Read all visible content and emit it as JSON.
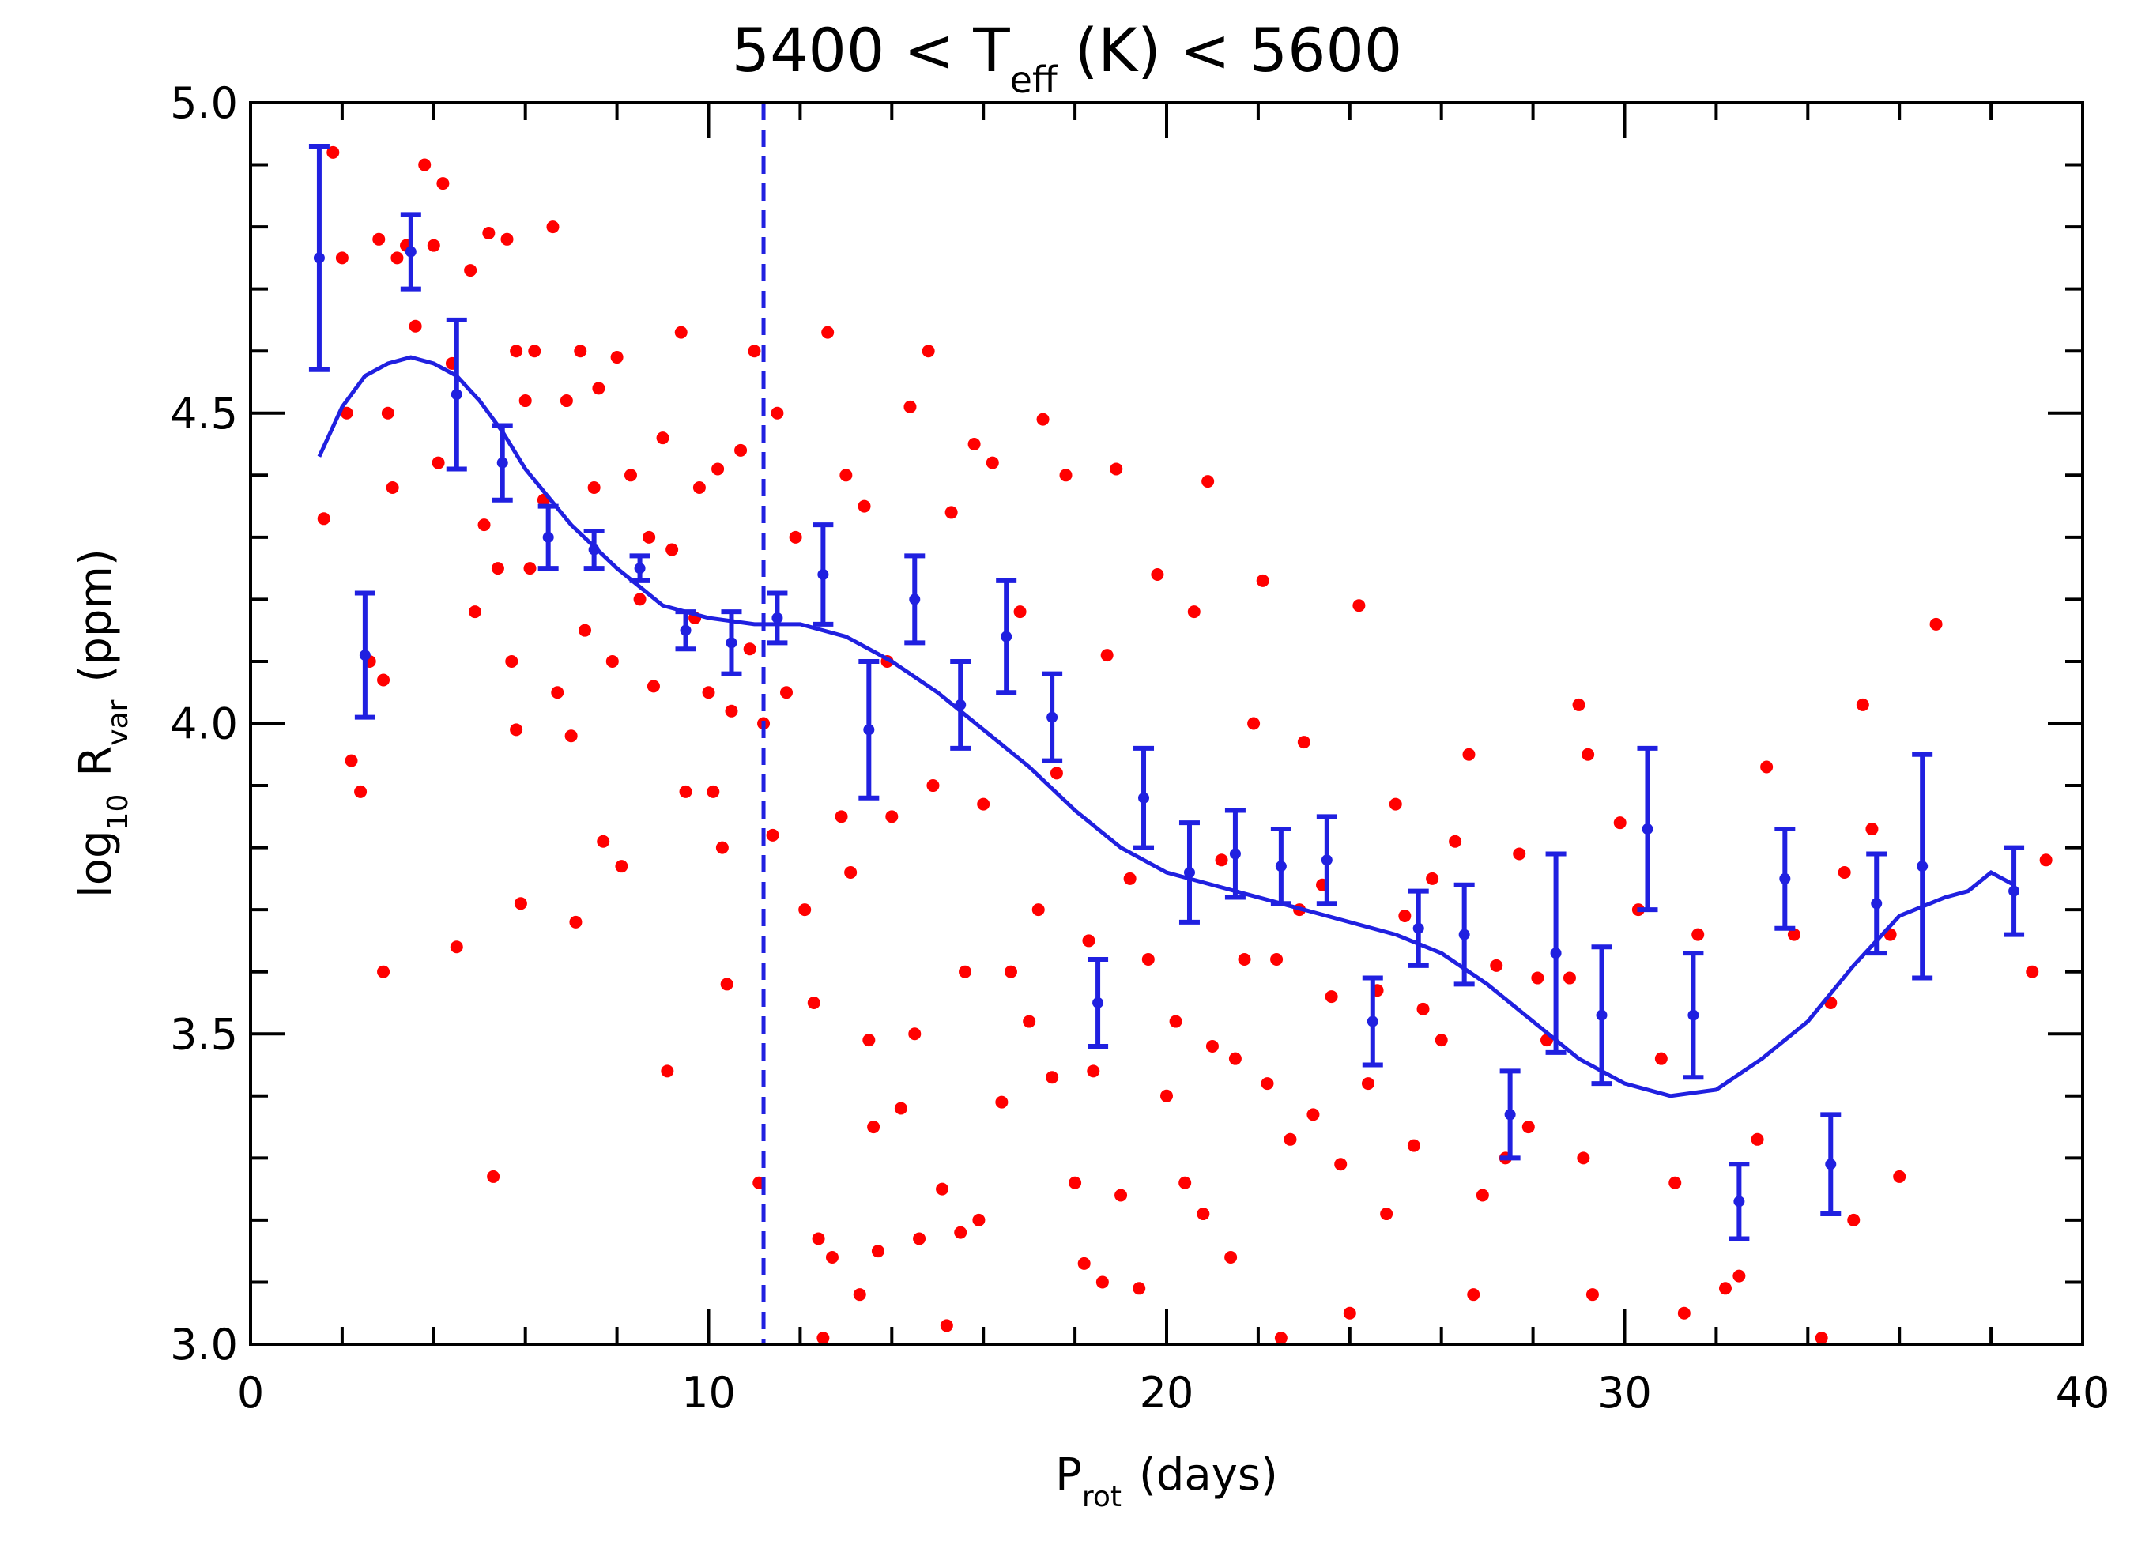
{
  "chart_data": {
    "type": "scatter",
    "title": "5400 < T",
    "title_sub": "eff",
    "title_tail": "(K) < 5600",
    "xlabel": "P",
    "xlabel_sub": "rot",
    "xlabel_tail": "(days)",
    "ylabel": "log",
    "ylabel_sub": "10",
    "ylabel_mid": "R",
    "ylabel_sub2": "var",
    "ylabel_tail": "(ppm)",
    "xlim": [
      0,
      40
    ],
    "xticks": [
      0,
      10,
      20,
      30,
      40
    ],
    "xminorticks": [
      2,
      4,
      6,
      8,
      12,
      14,
      16,
      18,
      22,
      24,
      26,
      28,
      32,
      34,
      36,
      38
    ],
    "ylim": [
      3,
      5
    ],
    "yticks": [
      {
        "value": 3,
        "label": "3.0"
      },
      3.5,
      {
        "value": 4,
        "label": "4.0"
      },
      4.5,
      {
        "value": 5,
        "label": "5.0"
      }
    ],
    "yminorticks": [
      3.1,
      3.2,
      3.3,
      3.4,
      3.6,
      3.7,
      3.8,
      3.9,
      4.1,
      4.2,
      4.3,
      4.4,
      4.6,
      4.7,
      4.8,
      4.9
    ],
    "points": {
      "color": "#ff0000",
      "x": [
        1.6,
        1.8,
        2.0,
        2.1,
        2.2,
        2.4,
        2.6,
        2.8,
        2.9,
        2.9,
        3.0,
        3.1,
        3.2,
        3.4,
        3.6,
        3.8,
        4.0,
        4.1,
        4.2,
        4.4,
        4.5,
        4.8,
        4.9,
        5.1,
        5.2,
        5.3,
        5.4,
        5.6,
        5.7,
        5.8,
        5.8,
        5.9,
        6.0,
        6.1,
        6.2,
        6.4,
        6.6,
        6.7,
        6.9,
        7.0,
        7.1,
        7.2,
        7.3,
        7.5,
        7.6,
        7.7,
        7.9,
        8.0,
        8.1,
        8.3,
        8.5,
        8.7,
        8.8,
        9.0,
        9.1,
        9.2,
        9.4,
        9.5,
        9.7,
        9.8,
        10.0,
        10.1,
        10.2,
        10.3,
        10.4,
        10.5,
        10.7,
        10.9,
        11.0,
        11.1,
        11.2,
        11.4,
        11.5,
        11.7,
        11.9,
        12.1,
        12.3,
        12.4,
        12.5,
        12.6,
        12.7,
        12.9,
        13.0,
        13.1,
        13.3,
        13.4,
        13.5,
        13.6,
        13.7,
        13.9,
        14.0,
        14.2,
        14.4,
        14.5,
        14.6,
        14.8,
        14.9,
        15.1,
        15.2,
        15.3,
        15.5,
        15.6,
        15.8,
        15.9,
        16.0,
        16.2,
        16.4,
        16.6,
        16.8,
        17.0,
        17.2,
        17.3,
        17.5,
        17.6,
        17.8,
        18.0,
        18.2,
        18.3,
        18.4,
        18.6,
        18.7,
        18.9,
        19.0,
        19.2,
        19.4,
        19.6,
        19.8,
        20.0,
        20.2,
        20.4,
        20.6,
        20.8,
        20.9,
        21.0,
        21.2,
        21.4,
        21.5,
        21.7,
        21.9,
        22.1,
        22.2,
        22.4,
        22.5,
        22.7,
        22.9,
        23.0,
        23.2,
        23.4,
        23.6,
        23.8,
        24.0,
        24.2,
        24.4,
        24.6,
        24.8,
        25.0,
        25.2,
        25.4,
        25.6,
        25.8,
        26.0,
        26.3,
        26.6,
        26.7,
        26.9,
        27.2,
        27.4,
        27.7,
        27.9,
        28.1,
        28.3,
        28.8,
        29.0,
        29.1,
        29.2,
        29.3,
        29.9,
        30.3,
        30.8,
        31.1,
        31.3,
        31.6,
        32.2,
        32.5,
        32.9,
        33.1,
        33.7,
        34.3,
        34.5,
        34.8,
        35.0,
        35.2,
        35.4,
        35.8,
        36.0,
        36.8,
        38.9,
        39.2
      ],
      "values": [
        4.33,
        4.92,
        4.75,
        4.5,
        3.94,
        3.89,
        4.1,
        4.78,
        3.6,
        4.07,
        4.5,
        4.38,
        4.75,
        4.77,
        4.64,
        4.9,
        4.77,
        4.42,
        4.87,
        4.58,
        3.64,
        4.73,
        4.18,
        4.32,
        4.79,
        3.27,
        4.25,
        4.78,
        4.1,
        4.6,
        3.99,
        3.71,
        4.52,
        4.25,
        4.6,
        4.36,
        4.8,
        4.05,
        4.52,
        3.98,
        3.68,
        4.6,
        4.15,
        4.38,
        4.54,
        3.81,
        4.1,
        4.59,
        3.77,
        4.4,
        4.2,
        4.3,
        4.06,
        4.46,
        3.44,
        4.28,
        4.63,
        3.89,
        4.17,
        4.38,
        4.05,
        3.89,
        4.41,
        3.8,
        3.58,
        4.02,
        4.44,
        4.12,
        4.6,
        3.26,
        4.0,
        3.82,
        4.5,
        4.05,
        4.3,
        3.7,
        3.55,
        3.17,
        3.01,
        4.63,
        3.14,
        3.85,
        4.4,
        3.76,
        3.08,
        4.35,
        3.49,
        3.35,
        3.15,
        4.1,
        3.85,
        3.38,
        4.51,
        3.5,
        3.17,
        4.6,
        3.9,
        3.25,
        3.03,
        4.34,
        3.18,
        3.6,
        4.45,
        3.2,
        3.87,
        4.42,
        3.39,
        3.6,
        4.18,
        3.52,
        3.7,
        4.49,
        3.43,
        3.92,
        4.4,
        3.26,
        3.13,
        3.65,
        3.44,
        3.1,
        4.11,
        4.41,
        3.24,
        3.75,
        3.09,
        3.62,
        4.24,
        3.4,
        3.52,
        3.26,
        4.18,
        3.21,
        4.39,
        3.48,
        3.78,
        3.14,
        3.46,
        3.62,
        4.0,
        4.23,
        3.42,
        3.62,
        3.01,
        3.33,
        3.7,
        3.97,
        3.37,
        3.74,
        3.56,
        3.29,
        3.05,
        4.19,
        3.42,
        3.57,
        3.21,
        3.87,
        3.69,
        3.32,
        3.54,
        3.75,
        3.49,
        3.81,
        3.95,
        3.08,
        3.24,
        3.61,
        3.3,
        3.79,
        3.35,
        3.59,
        3.49,
        3.59,
        4.03,
        3.3,
        3.95,
        3.08,
        3.84,
        3.7,
        3.46,
        3.26,
        3.05,
        3.66,
        3.09,
        3.11,
        3.33,
        3.93,
        3.66,
        3.01,
        3.55,
        3.76,
        3.2,
        4.03,
        3.83,
        3.66,
        3.27,
        4.16,
        3.6,
        3.78
      ]
    },
    "means": {
      "color": "#2020e0",
      "x": [
        1.5,
        2.5,
        3.5,
        4.5,
        5.5,
        6.5,
        7.5,
        8.5,
        9.5,
        10.5,
        11.5,
        12.5,
        13.5,
        14.5,
        15.5,
        16.5,
        17.5,
        18.5,
        19.5,
        20.5,
        21.5,
        22.5,
        23.5,
        24.5,
        25.5,
        26.5,
        27.5,
        28.5,
        29.5,
        30.5,
        31.5,
        32.5,
        33.5,
        34.5,
        35.5,
        36.5,
        38.5
      ],
      "values": [
        4.75,
        4.11,
        4.76,
        4.53,
        4.42,
        4.3,
        4.28,
        4.25,
        4.15,
        4.13,
        4.17,
        4.24,
        3.99,
        4.2,
        4.03,
        4.14,
        4.01,
        3.55,
        3.88,
        3.76,
        3.79,
        3.77,
        3.78,
        3.52,
        3.67,
        3.66,
        3.37,
        3.63,
        3.53,
        3.83,
        3.53,
        3.23,
        3.75,
        3.29,
        3.71,
        3.77,
        3.73
      ],
      "errors": [
        0.18,
        0.1,
        0.06,
        0.12,
        0.06,
        0.05,
        0.03,
        0.02,
        0.03,
        0.05,
        0.04,
        0.08,
        0.11,
        0.07,
        0.07,
        0.09,
        0.07,
        0.07,
        0.08,
        0.08,
        0.07,
        0.06,
        0.07,
        0.07,
        0.06,
        0.08,
        0.07,
        0.16,
        0.11,
        0.13,
        0.1,
        0.06,
        0.08,
        0.08,
        0.08,
        0.18,
        0.07
      ]
    },
    "curve": {
      "color": "#2020e0",
      "x": [
        1.5,
        2,
        2.5,
        3,
        3.5,
        4,
        4.5,
        5,
        5.5,
        6,
        7,
        8,
        9,
        10,
        11,
        12,
        13,
        14,
        15,
        16,
        17,
        18,
        19,
        20,
        21,
        22,
        23,
        24,
        25,
        26,
        27,
        28,
        29,
        30,
        31,
        32,
        33,
        34,
        35,
        36,
        37,
        37.5,
        38,
        38.5
      ],
      "values": [
        4.43,
        4.51,
        4.56,
        4.58,
        4.59,
        4.58,
        4.56,
        4.52,
        4.47,
        4.41,
        4.32,
        4.25,
        4.19,
        4.17,
        4.16,
        4.16,
        4.14,
        4.1,
        4.05,
        3.99,
        3.93,
        3.86,
        3.8,
        3.76,
        3.74,
        3.72,
        3.7,
        3.68,
        3.66,
        3.63,
        3.58,
        3.52,
        3.46,
        3.42,
        3.4,
        3.41,
        3.46,
        3.52,
        3.61,
        3.69,
        3.72,
        3.73,
        3.76,
        3.74
      ]
    },
    "vline": {
      "x": 11.2,
      "color": "#2020e0",
      "dashed": true
    }
  }
}
